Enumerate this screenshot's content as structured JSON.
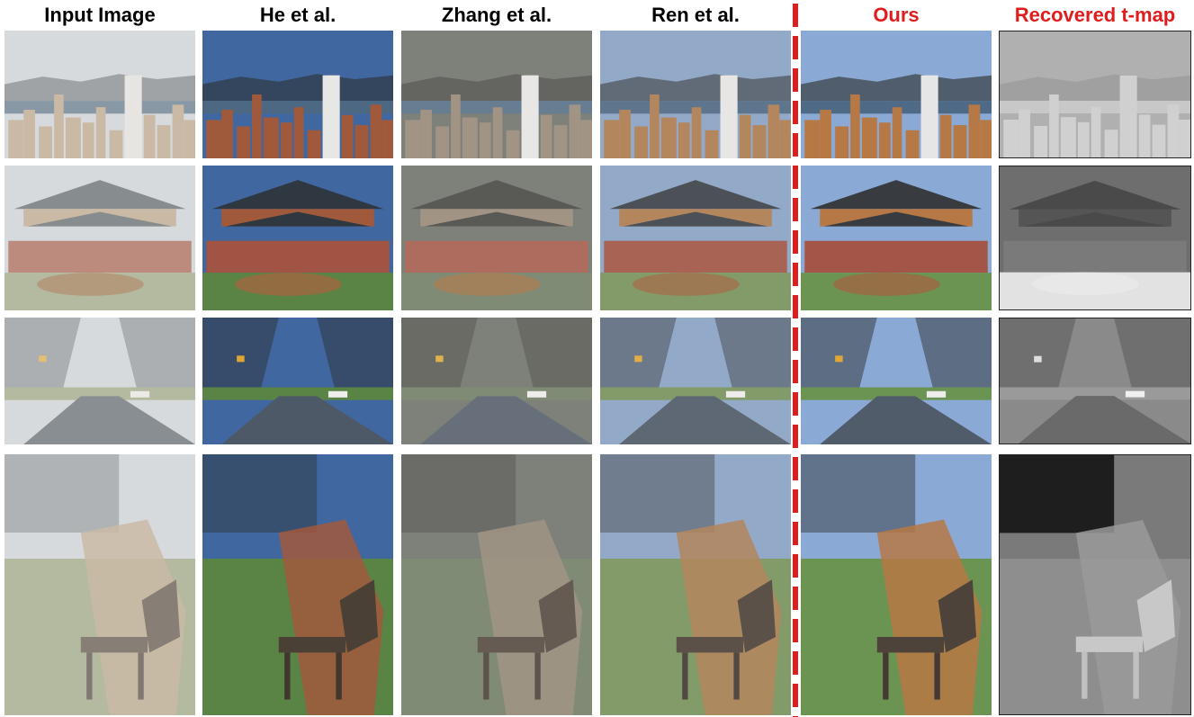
{
  "columns": [
    {
      "key": "input",
      "label": "Input Image"
    },
    {
      "key": "he",
      "label": "He et al."
    },
    {
      "key": "zhang",
      "label": "Zhang et al."
    },
    {
      "key": "ren",
      "label": "Ren et al."
    },
    {
      "key": "ours",
      "label": "Ours",
      "highlight": true
    },
    {
      "key": "tmap",
      "label": "Recovered t-map",
      "highlight": true
    }
  ],
  "rows": [
    {
      "scene": "city-skyline"
    },
    {
      "scene": "gate-tower"
    },
    {
      "scene": "tree-lined-road"
    },
    {
      "scene": "park-bench"
    }
  ],
  "colors": {
    "highlight": "#e01c1c",
    "header": "#000000"
  }
}
